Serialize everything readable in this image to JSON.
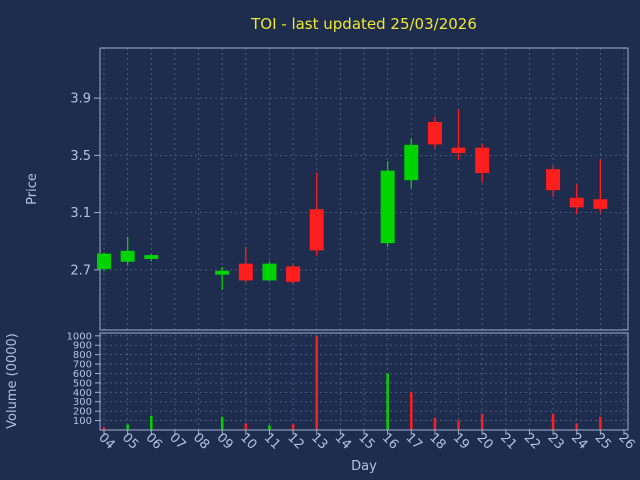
{
  "colors": {
    "background": "#1e2c4e",
    "grid": "#7d8fb5",
    "axis": "#9fb0d0",
    "text": "#b4c0e4",
    "title": "#f0e832",
    "up": "#00d400",
    "down": "#ff1e1e"
  },
  "chart_data": {
    "type": "candlestick",
    "title": "TOI - last updated 25/03/2026",
    "xlabel": "Day",
    "grid": true,
    "x_ticks": [
      "04",
      "05",
      "06",
      "07",
      "08",
      "09",
      "10",
      "11",
      "12",
      "13",
      "14",
      "15",
      "16",
      "17",
      "18",
      "19",
      "20",
      "21",
      "22",
      "23",
      "24",
      "25",
      "26"
    ],
    "x_range": [
      4,
      26
    ],
    "price_axis": {
      "label": "Price",
      "ticks": [
        2.7,
        3.1,
        3.5,
        3.9
      ],
      "range": [
        2.28,
        4.25
      ]
    },
    "volume_axis": {
      "label": "Volume (0000)",
      "ticks": [
        100,
        200,
        300,
        400,
        500,
        600,
        700,
        800,
        900,
        1000
      ],
      "range": [
        0,
        1030
      ]
    },
    "candles": [
      {
        "day": 4,
        "open": 2.71,
        "high": 2.82,
        "low": 2.69,
        "close": 2.81,
        "volume": 30,
        "volume_dir": "down"
      },
      {
        "day": 5,
        "open": 2.76,
        "high": 2.93,
        "low": 2.73,
        "close": 2.83,
        "volume": 60,
        "volume_dir": "up"
      },
      {
        "day": 6,
        "open": 2.78,
        "high": 2.81,
        "low": 2.76,
        "close": 2.8,
        "volume": 150,
        "volume_dir": "up"
      },
      {
        "day": 9,
        "open": 2.67,
        "high": 2.72,
        "low": 2.56,
        "close": 2.69,
        "volume": 140,
        "volume_dir": "up"
      },
      {
        "day": 10,
        "open": 2.74,
        "high": 2.86,
        "low": 2.61,
        "close": 2.63,
        "volume": 70,
        "volume_dir": "down"
      },
      {
        "day": 11,
        "open": 2.63,
        "high": 2.76,
        "low": 2.62,
        "close": 2.74,
        "volume": 50,
        "volume_dir": "up"
      },
      {
        "day": 12,
        "open": 2.72,
        "high": 2.74,
        "low": 2.6,
        "close": 2.62,
        "volume": 60,
        "volume_dir": "down"
      },
      {
        "day": 13,
        "open": 3.12,
        "high": 3.38,
        "low": 2.8,
        "close": 2.84,
        "volume": 1000,
        "volume_dir": "down"
      },
      {
        "day": 16,
        "open": 2.89,
        "high": 3.46,
        "low": 2.86,
        "close": 3.39,
        "volume": 600,
        "volume_dir": "up"
      },
      {
        "day": 17,
        "open": 3.33,
        "high": 3.62,
        "low": 3.27,
        "close": 3.57,
        "volume": 400,
        "volume_dir": "down"
      },
      {
        "day": 18,
        "open": 3.73,
        "high": 3.77,
        "low": 3.55,
        "close": 3.58,
        "volume": 130,
        "volume_dir": "down"
      },
      {
        "day": 19,
        "open": 3.55,
        "high": 3.82,
        "low": 3.47,
        "close": 3.52,
        "volume": 100,
        "volume_dir": "down"
      },
      {
        "day": 20,
        "open": 3.55,
        "high": 3.58,
        "low": 3.31,
        "close": 3.38,
        "volume": 170,
        "volume_dir": "down"
      },
      {
        "day": 23,
        "open": 3.4,
        "high": 3.43,
        "low": 3.21,
        "close": 3.26,
        "volume": 170,
        "volume_dir": "down"
      },
      {
        "day": 24,
        "open": 3.2,
        "high": 3.3,
        "low": 3.09,
        "close": 3.14,
        "volume": 70,
        "volume_dir": "down"
      },
      {
        "day": 25,
        "open": 3.19,
        "high": 3.47,
        "low": 3.1,
        "close": 3.13,
        "volume": 140,
        "volume_dir": "down"
      }
    ]
  }
}
